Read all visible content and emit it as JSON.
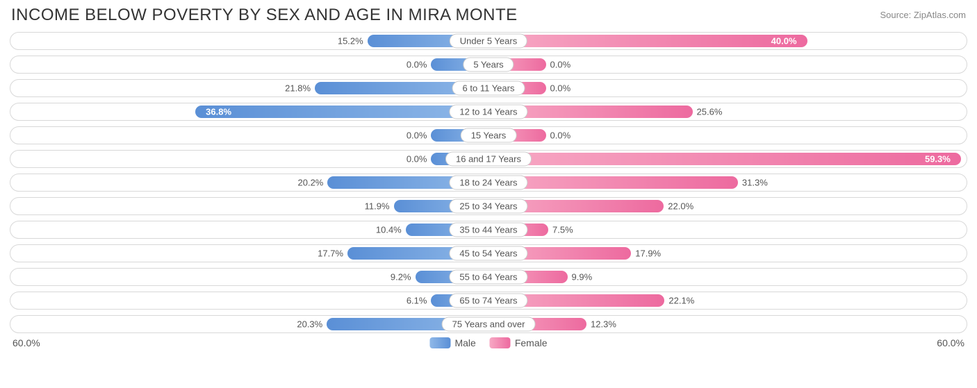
{
  "title": "INCOME BELOW POVERTY BY SEX AND AGE IN MIRA MONTE",
  "source": "Source: ZipAtlas.com",
  "axis_max": 60.0,
  "axis_label_left": "60.0%",
  "axis_label_right": "60.0%",
  "legend": {
    "male": "Male",
    "female": "Female"
  },
  "colors": {
    "male_bar_start": "#8fb8e8",
    "male_bar_end": "#5a8fd6",
    "female_bar_start": "#f7a8c4",
    "female_bar_end": "#ed6a9f",
    "track_border": "#d8d8d8",
    "background": "#ffffff",
    "text": "#555555",
    "title_text": "#333333",
    "source_text": "#888888"
  },
  "min_bar_pct": 12.0,
  "rows": [
    {
      "category": "Under 5 Years",
      "male": 15.2,
      "female": 40.0
    },
    {
      "category": "5 Years",
      "male": 0.0,
      "female": 0.0
    },
    {
      "category": "6 to 11 Years",
      "male": 21.8,
      "female": 0.0
    },
    {
      "category": "12 to 14 Years",
      "male": 36.8,
      "female": 25.6
    },
    {
      "category": "15 Years",
      "male": 0.0,
      "female": 0.0
    },
    {
      "category": "16 and 17 Years",
      "male": 0.0,
      "female": 59.3
    },
    {
      "category": "18 to 24 Years",
      "male": 20.2,
      "female": 31.3
    },
    {
      "category": "25 to 34 Years",
      "male": 11.9,
      "female": 22.0
    },
    {
      "category": "35 to 44 Years",
      "male": 10.4,
      "female": 7.5
    },
    {
      "category": "45 to 54 Years",
      "male": 17.7,
      "female": 17.9
    },
    {
      "category": "55 to 64 Years",
      "male": 9.2,
      "female": 9.9
    },
    {
      "category": "65 to 74 Years",
      "male": 6.1,
      "female": 22.1
    },
    {
      "category": "75 Years and over",
      "male": 20.3,
      "female": 12.3
    }
  ]
}
